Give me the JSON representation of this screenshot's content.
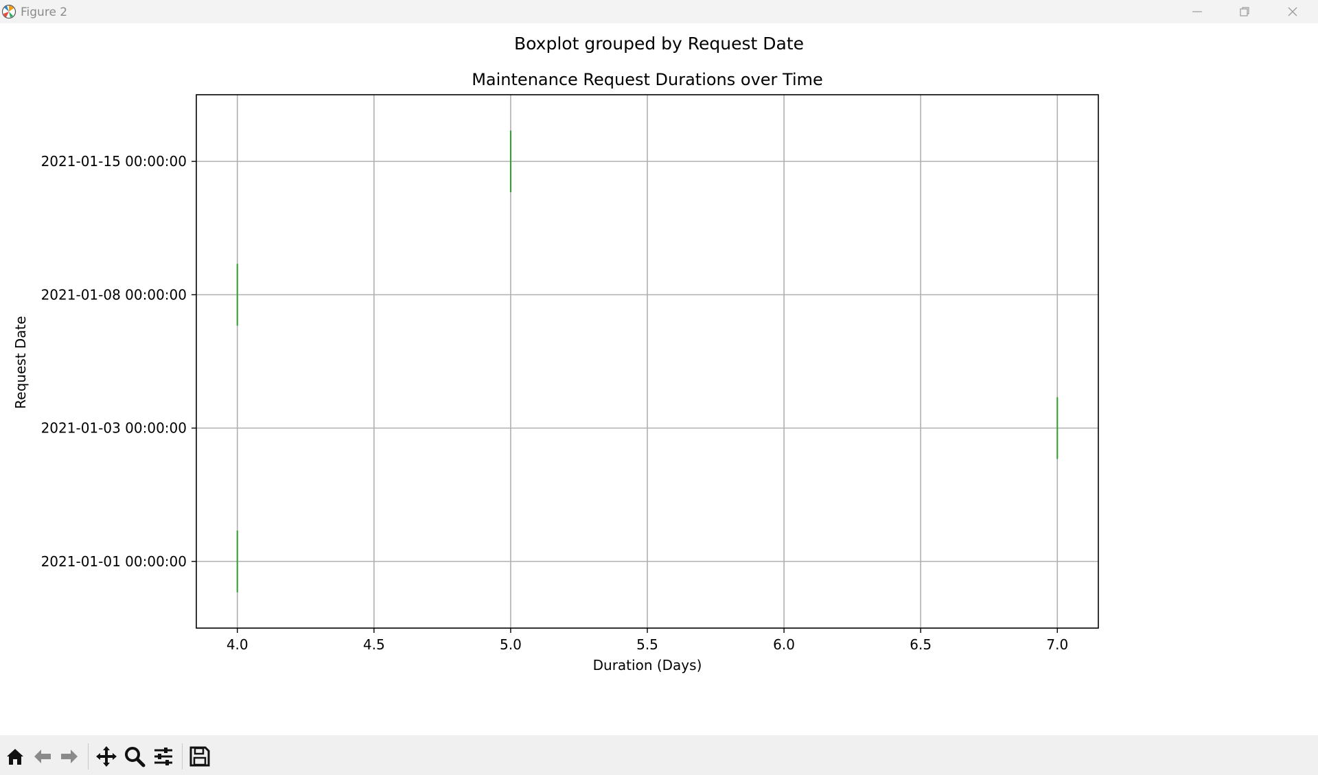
{
  "window": {
    "title": "Figure 2",
    "controls": [
      "minimize",
      "restore",
      "close"
    ]
  },
  "toolbar": {
    "buttons": [
      {
        "name": "home",
        "icon": "home-icon"
      },
      {
        "name": "back",
        "icon": "arrow-left-icon"
      },
      {
        "name": "forward",
        "icon": "arrow-right-icon"
      },
      {
        "name": "pan",
        "icon": "move-icon"
      },
      {
        "name": "zoom",
        "icon": "magnifier-icon"
      },
      {
        "name": "configure-subplots",
        "icon": "sliders-icon"
      },
      {
        "name": "save",
        "icon": "floppy-disk-icon"
      }
    ]
  },
  "chart_data": {
    "type": "box",
    "suptitle": "Boxplot grouped by Request Date",
    "title": "Maintenance Request Durations over Time",
    "xlabel": "Duration (Days)",
    "ylabel": "Request Date",
    "orientation": "horizontal",
    "grid": true,
    "xlim": [
      3.85,
      7.15
    ],
    "xticks": [
      "4.0",
      "4.5",
      "5.0",
      "5.5",
      "6.0",
      "6.5",
      "7.0"
    ],
    "categories": [
      "2021-01-01 00:00:00",
      "2021-01-03 00:00:00",
      "2021-01-08 00:00:00",
      "2021-01-15 00:00:00"
    ],
    "values": [
      4.0,
      7.0,
      4.0,
      5.0
    ],
    "median_color": "#2ca02c"
  }
}
